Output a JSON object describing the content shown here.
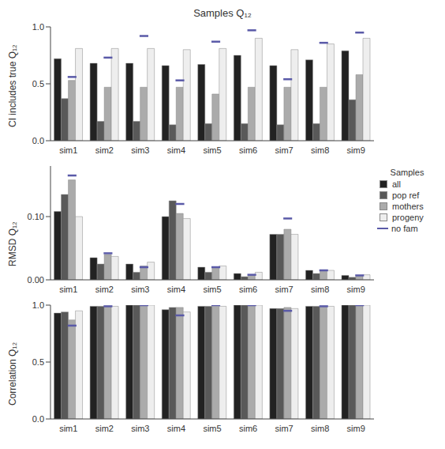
{
  "chart_data": [
    {
      "type": "bar",
      "title": "Samples Q₁₂",
      "y_label": "CI includes true Q₁₂",
      "categories": [
        "sim1",
        "sim2",
        "sim3",
        "sim4",
        "sim5",
        "sim6",
        "sim7",
        "sim8",
        "sim9"
      ],
      "ylim": [
        0,
        1
      ],
      "yticks": [
        {
          "value": 0,
          "label": "0.0"
        },
        {
          "value": 0.5,
          "label": "0.5"
        },
        {
          "value": 1,
          "label": "1.0"
        }
      ],
      "series": [
        {
          "name": "all",
          "color": "#222222",
          "values": [
            0.72,
            0.68,
            0.68,
            0.66,
            0.67,
            0.75,
            0.66,
            0.71,
            0.79
          ]
        },
        {
          "name": "pop ref",
          "color": "#595959",
          "values": [
            0.37,
            0.17,
            0.17,
            0.14,
            0.15,
            0.15,
            0.14,
            0.15,
            0.36
          ]
        },
        {
          "name": "mothers",
          "color": "#ababab",
          "values": [
            0.53,
            0.47,
            0.47,
            0.47,
            0.41,
            0.47,
            0.47,
            0.47,
            0.58
          ]
        },
        {
          "name": "progeny",
          "color": "#eeeeee",
          "values": [
            0.81,
            0.81,
            0.81,
            0.8,
            0.81,
            0.9,
            0.8,
            0.85,
            0.9
          ]
        },
        {
          "name": "no fam",
          "color": "#5a5aa8",
          "type": "scatter",
          "marker": "line",
          "values": [
            0.56,
            0.73,
            0.92,
            0.53,
            0.87,
            0.97,
            0.54,
            0.86,
            0.95
          ]
        }
      ]
    },
    {
      "type": "bar",
      "y_label": "RMSD Q₁₂",
      "legend": "right",
      "legend_title": "Samples",
      "categories": [
        "sim1",
        "sim2",
        "sim3",
        "sim4",
        "sim5",
        "sim6",
        "sim7",
        "sim8",
        "sim9"
      ],
      "ylim": [
        0,
        0.18
      ],
      "yticks": [
        {
          "value": 0,
          "label": "0.00"
        },
        {
          "value": 0.1,
          "label": "0.10"
        }
      ],
      "series": [
        {
          "name": "all",
          "color": "#222222",
          "values": [
            0.108,
            0.035,
            0.025,
            0.1,
            0.02,
            0.01,
            0.072,
            0.015,
            0.007
          ]
        },
        {
          "name": "pop ref",
          "color": "#595959",
          "values": [
            0.135,
            0.025,
            0.012,
            0.125,
            0.012,
            0.005,
            0.072,
            0.01,
            0.004
          ]
        },
        {
          "name": "mothers",
          "color": "#ababab",
          "values": [
            0.158,
            0.04,
            0.022,
            0.105,
            0.02,
            0.008,
            0.08,
            0.015,
            0.006
          ]
        },
        {
          "name": "progeny",
          "color": "#eeeeee",
          "values": [
            0.1,
            0.037,
            0.028,
            0.097,
            0.022,
            0.012,
            0.072,
            0.015,
            0.008
          ]
        },
        {
          "name": "no fam",
          "color": "#5a5aa8",
          "type": "scatter",
          "marker": "line",
          "values": [
            0.165,
            0.042,
            0.02,
            0.12,
            0.02,
            0.008,
            0.097,
            0.015,
            0.007
          ]
        }
      ]
    },
    {
      "type": "bar",
      "y_label": "Correlation Q₁₂",
      "categories": [
        "sim1",
        "sim2",
        "sim3",
        "sim4",
        "sim5",
        "sim6",
        "sim7",
        "sim8",
        "sim9"
      ],
      "ylim": [
        0,
        1
      ],
      "yticks": [
        {
          "value": 0,
          "label": "0.0"
        },
        {
          "value": 0.5,
          "label": "0.5"
        },
        {
          "value": 1,
          "label": "1.0"
        }
      ],
      "series": [
        {
          "name": "all",
          "color": "#222222",
          "values": [
            0.93,
            0.99,
            1.0,
            0.96,
            0.99,
            1.0,
            0.97,
            0.99,
            1.0
          ]
        },
        {
          "name": "pop ref",
          "color": "#595959",
          "values": [
            0.94,
            0.99,
            1.0,
            0.98,
            0.99,
            1.0,
            0.97,
            0.99,
            1.0
          ]
        },
        {
          "name": "mothers",
          "color": "#ababab",
          "values": [
            0.87,
            0.99,
            1.0,
            0.98,
            0.99,
            1.0,
            0.98,
            0.99,
            1.0
          ]
        },
        {
          "name": "progeny",
          "color": "#eeeeee",
          "values": [
            0.95,
            0.99,
            1.0,
            0.94,
            0.99,
            1.0,
            0.97,
            0.99,
            1.0
          ]
        },
        {
          "name": "no fam",
          "color": "#5a5aa8",
          "type": "scatter",
          "marker": "line",
          "values": [
            0.82,
            0.99,
            1.0,
            0.91,
            1.0,
            1.0,
            0.95,
            0.99,
            1.0
          ]
        }
      ]
    }
  ]
}
